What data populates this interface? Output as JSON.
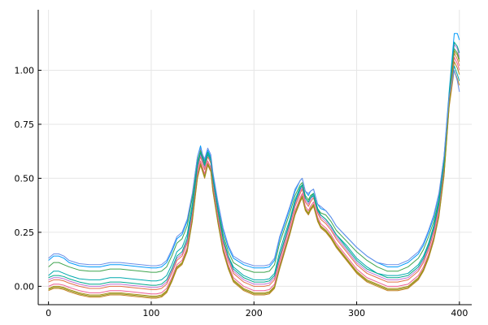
{
  "chart_data": {
    "type": "line",
    "title": "",
    "xlabel": "",
    "ylabel": "",
    "xlim": [
      -10,
      412
    ],
    "ylim": [
      -0.085,
      1.28
    ],
    "grid": true,
    "legend": "none",
    "xticks": [
      0,
      100,
      200,
      300,
      400
    ],
    "yticks": [
      0.0,
      0.25,
      0.5,
      0.75,
      1.0
    ],
    "xtick_labels": [
      "0",
      "100",
      "200",
      "300",
      "400"
    ],
    "ytick_labels": [
      "0.00",
      "0.25",
      "0.50",
      "0.75",
      "1.00"
    ],
    "x": [
      0,
      5,
      10,
      15,
      20,
      30,
      40,
      50,
      60,
      70,
      80,
      90,
      100,
      105,
      110,
      115,
      120,
      125,
      130,
      135,
      140,
      145,
      148,
      150,
      152,
      155,
      158,
      160,
      165,
      170,
      175,
      180,
      190,
      200,
      210,
      215,
      220,
      225,
      230,
      235,
      240,
      245,
      247,
      250,
      253,
      255,
      258,
      262,
      265,
      270,
      275,
      280,
      290,
      300,
      310,
      320,
      330,
      340,
      350,
      360,
      365,
      370,
      375,
      380,
      385,
      390,
      395,
      398,
      400
    ],
    "series": [
      {
        "color": "#009AFA",
        "values": [
          0.12,
          0.14,
          0.14,
          0.13,
          0.11,
          0.095,
          0.09,
          0.09,
          0.1,
          0.1,
          0.095,
          0.09,
          0.085,
          0.085,
          0.09,
          0.11,
          0.16,
          0.22,
          0.24,
          0.3,
          0.42,
          0.6,
          0.65,
          0.61,
          0.58,
          0.63,
          0.6,
          0.52,
          0.38,
          0.26,
          0.18,
          0.13,
          0.1,
          0.085,
          0.085,
          0.09,
          0.12,
          0.22,
          0.29,
          0.36,
          0.44,
          0.49,
          0.5,
          0.44,
          0.42,
          0.44,
          0.45,
          0.38,
          0.36,
          0.35,
          0.32,
          0.28,
          0.23,
          0.18,
          0.14,
          0.11,
          0.09,
          0.09,
          0.11,
          0.15,
          0.19,
          0.25,
          0.32,
          0.42,
          0.6,
          0.9,
          1.17,
          1.17,
          1.14
        ]
      },
      {
        "color": "#E36F47",
        "values": [
          0.02,
          0.03,
          0.03,
          0.025,
          0.015,
          0.0,
          -0.01,
          -0.01,
          0.0,
          0.0,
          -0.005,
          -0.01,
          -0.015,
          -0.015,
          -0.01,
          0.01,
          0.06,
          0.12,
          0.14,
          0.2,
          0.34,
          0.54,
          0.6,
          0.57,
          0.54,
          0.6,
          0.57,
          0.48,
          0.33,
          0.2,
          0.12,
          0.06,
          0.02,
          0.0,
          0.0,
          0.005,
          0.03,
          0.12,
          0.2,
          0.28,
          0.37,
          0.43,
          0.45,
          0.39,
          0.37,
          0.39,
          0.41,
          0.34,
          0.31,
          0.29,
          0.26,
          0.22,
          0.16,
          0.1,
          0.06,
          0.04,
          0.02,
          0.02,
          0.03,
          0.07,
          0.11,
          0.17,
          0.25,
          0.36,
          0.55,
          0.87,
          1.08,
          1.05,
          1.02
        ]
      },
      {
        "color": "#3EA44E",
        "values": [
          0.09,
          0.11,
          0.11,
          0.1,
          0.09,
          0.075,
          0.07,
          0.07,
          0.08,
          0.08,
          0.075,
          0.07,
          0.065,
          0.065,
          0.07,
          0.09,
          0.14,
          0.2,
          0.22,
          0.28,
          0.41,
          0.58,
          0.63,
          0.6,
          0.57,
          0.62,
          0.59,
          0.5,
          0.36,
          0.24,
          0.16,
          0.11,
          0.08,
          0.065,
          0.065,
          0.07,
          0.1,
          0.2,
          0.27,
          0.34,
          0.42,
          0.47,
          0.48,
          0.42,
          0.4,
          0.42,
          0.43,
          0.36,
          0.34,
          0.33,
          0.3,
          0.26,
          0.21,
          0.16,
          0.12,
          0.09,
          0.07,
          0.07,
          0.09,
          0.13,
          0.17,
          0.23,
          0.3,
          0.4,
          0.58,
          0.88,
          1.1,
          1.08,
          1.05
        ]
      },
      {
        "color": "#C271D2",
        "values": [
          0.03,
          0.04,
          0.04,
          0.035,
          0.025,
          0.01,
          0.0,
          0.0,
          0.01,
          0.01,
          0.005,
          0.0,
          -0.005,
          -0.005,
          0.0,
          0.02,
          0.07,
          0.13,
          0.15,
          0.21,
          0.35,
          0.55,
          0.61,
          0.58,
          0.55,
          0.61,
          0.58,
          0.49,
          0.34,
          0.21,
          0.13,
          0.07,
          0.03,
          0.01,
          0.01,
          0.015,
          0.04,
          0.13,
          0.21,
          0.29,
          0.38,
          0.44,
          0.46,
          0.4,
          0.38,
          0.4,
          0.42,
          0.35,
          0.32,
          0.3,
          0.27,
          0.23,
          0.17,
          0.11,
          0.07,
          0.05,
          0.03,
          0.03,
          0.04,
          0.08,
          0.12,
          0.18,
          0.26,
          0.37,
          0.56,
          0.88,
          1.12,
          1.1,
          1.06
        ]
      },
      {
        "color": "#AC8D18",
        "values": [
          -0.01,
          0.0,
          0.0,
          -0.005,
          -0.015,
          -0.03,
          -0.04,
          -0.04,
          -0.03,
          -0.03,
          -0.035,
          -0.04,
          -0.045,
          -0.045,
          -0.04,
          -0.02,
          0.03,
          0.09,
          0.11,
          0.17,
          0.31,
          0.51,
          0.57,
          0.54,
          0.51,
          0.57,
          0.54,
          0.45,
          0.3,
          0.17,
          0.09,
          0.03,
          -0.01,
          -0.03,
          -0.03,
          -0.025,
          0.0,
          0.09,
          0.17,
          0.25,
          0.34,
          0.4,
          0.42,
          0.36,
          0.34,
          0.36,
          0.38,
          0.31,
          0.28,
          0.26,
          0.23,
          0.19,
          0.13,
          0.07,
          0.03,
          0.01,
          -0.01,
          -0.01,
          0.0,
          0.04,
          0.08,
          0.14,
          0.22,
          0.33,
          0.52,
          0.84,
          1.04,
          1.01,
          0.98
        ]
      },
      {
        "color": "#00A9AD",
        "values": [
          0.05,
          0.07,
          0.07,
          0.06,
          0.05,
          0.035,
          0.03,
          0.03,
          0.04,
          0.04,
          0.035,
          0.03,
          0.025,
          0.025,
          0.03,
          0.05,
          0.1,
          0.16,
          0.18,
          0.24,
          0.38,
          0.57,
          0.62,
          0.59,
          0.56,
          0.61,
          0.58,
          0.5,
          0.35,
          0.22,
          0.14,
          0.09,
          0.05,
          0.03,
          0.03,
          0.035,
          0.06,
          0.16,
          0.24,
          0.31,
          0.4,
          0.46,
          0.47,
          0.41,
          0.39,
          0.41,
          0.42,
          0.35,
          0.33,
          0.31,
          0.28,
          0.24,
          0.19,
          0.13,
          0.09,
          0.06,
          0.05,
          0.05,
          0.06,
          0.1,
          0.14,
          0.2,
          0.28,
          0.39,
          0.57,
          0.88,
          1.02,
          0.98,
          0.95
        ]
      },
      {
        "color": "#ED5E93",
        "values": [
          0.0,
          0.01,
          0.01,
          0.005,
          -0.005,
          -0.02,
          -0.03,
          -0.03,
          -0.02,
          -0.02,
          -0.025,
          -0.03,
          -0.035,
          -0.035,
          -0.03,
          -0.01,
          0.04,
          0.1,
          0.12,
          0.18,
          0.32,
          0.52,
          0.58,
          0.55,
          0.52,
          0.58,
          0.55,
          0.46,
          0.31,
          0.18,
          0.1,
          0.04,
          0.0,
          -0.02,
          -0.02,
          -0.015,
          0.01,
          0.1,
          0.18,
          0.26,
          0.35,
          0.41,
          0.43,
          0.37,
          0.35,
          0.37,
          0.39,
          0.32,
          0.29,
          0.27,
          0.24,
          0.2,
          0.14,
          0.08,
          0.04,
          0.02,
          0.0,
          0.0,
          0.01,
          0.05,
          0.09,
          0.15,
          0.23,
          0.34,
          0.53,
          0.85,
          1.06,
          1.03,
          1.0
        ]
      },
      {
        "color": "#C68225",
        "values": [
          -0.02,
          -0.01,
          -0.01,
          -0.015,
          -0.025,
          -0.04,
          -0.05,
          -0.05,
          -0.04,
          -0.04,
          -0.045,
          -0.05,
          -0.055,
          -0.055,
          -0.05,
          -0.03,
          0.02,
          0.08,
          0.1,
          0.16,
          0.3,
          0.5,
          0.56,
          0.53,
          0.5,
          0.56,
          0.53,
          0.44,
          0.29,
          0.16,
          0.08,
          0.02,
          -0.02,
          -0.04,
          -0.04,
          -0.035,
          -0.01,
          0.08,
          0.16,
          0.24,
          0.33,
          0.39,
          0.41,
          0.35,
          0.33,
          0.35,
          0.37,
          0.3,
          0.27,
          0.25,
          0.22,
          0.18,
          0.12,
          0.06,
          0.02,
          0.0,
          -0.02,
          -0.02,
          -0.01,
          0.03,
          0.07,
          0.13,
          0.21,
          0.32,
          0.51,
          0.83,
          1.0,
          0.96,
          0.93
        ]
      },
      {
        "color": "#00A98D",
        "values": [
          0.04,
          0.05,
          0.05,
          0.045,
          0.035,
          0.02,
          0.01,
          0.01,
          0.02,
          0.02,
          0.015,
          0.01,
          0.005,
          0.005,
          0.01,
          0.03,
          0.08,
          0.14,
          0.16,
          0.22,
          0.36,
          0.56,
          0.62,
          0.59,
          0.56,
          0.62,
          0.59,
          0.5,
          0.35,
          0.22,
          0.14,
          0.08,
          0.04,
          0.02,
          0.02,
          0.025,
          0.05,
          0.14,
          0.22,
          0.3,
          0.39,
          0.45,
          0.47,
          0.41,
          0.39,
          0.41,
          0.43,
          0.36,
          0.33,
          0.31,
          0.28,
          0.24,
          0.18,
          0.12,
          0.08,
          0.06,
          0.04,
          0.04,
          0.05,
          0.09,
          0.13,
          0.19,
          0.27,
          0.38,
          0.57,
          0.89,
          1.13,
          1.11,
          1.08
        ]
      },
      {
        "color": "#8E971D",
        "values": [
          -0.015,
          -0.005,
          -0.005,
          -0.01,
          -0.02,
          -0.035,
          -0.045,
          -0.045,
          -0.035,
          -0.035,
          -0.04,
          -0.045,
          -0.05,
          -0.05,
          -0.045,
          -0.025,
          0.025,
          0.085,
          0.105,
          0.165,
          0.305,
          0.505,
          0.565,
          0.535,
          0.505,
          0.565,
          0.535,
          0.445,
          0.295,
          0.165,
          0.085,
          0.025,
          -0.015,
          -0.035,
          -0.035,
          -0.03,
          -0.005,
          0.085,
          0.165,
          0.245,
          0.335,
          0.395,
          0.415,
          0.355,
          0.335,
          0.355,
          0.375,
          0.305,
          0.275,
          0.255,
          0.225,
          0.185,
          0.125,
          0.065,
          0.025,
          0.005,
          -0.015,
          -0.015,
          -0.005,
          0.035,
          0.075,
          0.135,
          0.215,
          0.325,
          0.515,
          0.835,
          1.09,
          1.07,
          1.04
        ]
      },
      {
        "color": "#6B8FE8",
        "values": [
          0.13,
          0.15,
          0.15,
          0.14,
          0.12,
          0.105,
          0.1,
          0.1,
          0.11,
          0.11,
          0.105,
          0.1,
          0.095,
          0.095,
          0.1,
          0.12,
          0.17,
          0.23,
          0.25,
          0.31,
          0.43,
          0.6,
          0.64,
          0.61,
          0.59,
          0.64,
          0.61,
          0.53,
          0.39,
          0.27,
          0.19,
          0.14,
          0.11,
          0.095,
          0.095,
          0.1,
          0.13,
          0.23,
          0.3,
          0.37,
          0.45,
          0.49,
          0.5,
          0.44,
          0.43,
          0.44,
          0.45,
          0.38,
          0.37,
          0.35,
          0.32,
          0.28,
          0.23,
          0.18,
          0.14,
          0.11,
          0.1,
          0.1,
          0.12,
          0.16,
          0.2,
          0.26,
          0.33,
          0.43,
          0.6,
          0.88,
          1.0,
          0.95,
          0.9
        ]
      }
    ]
  }
}
